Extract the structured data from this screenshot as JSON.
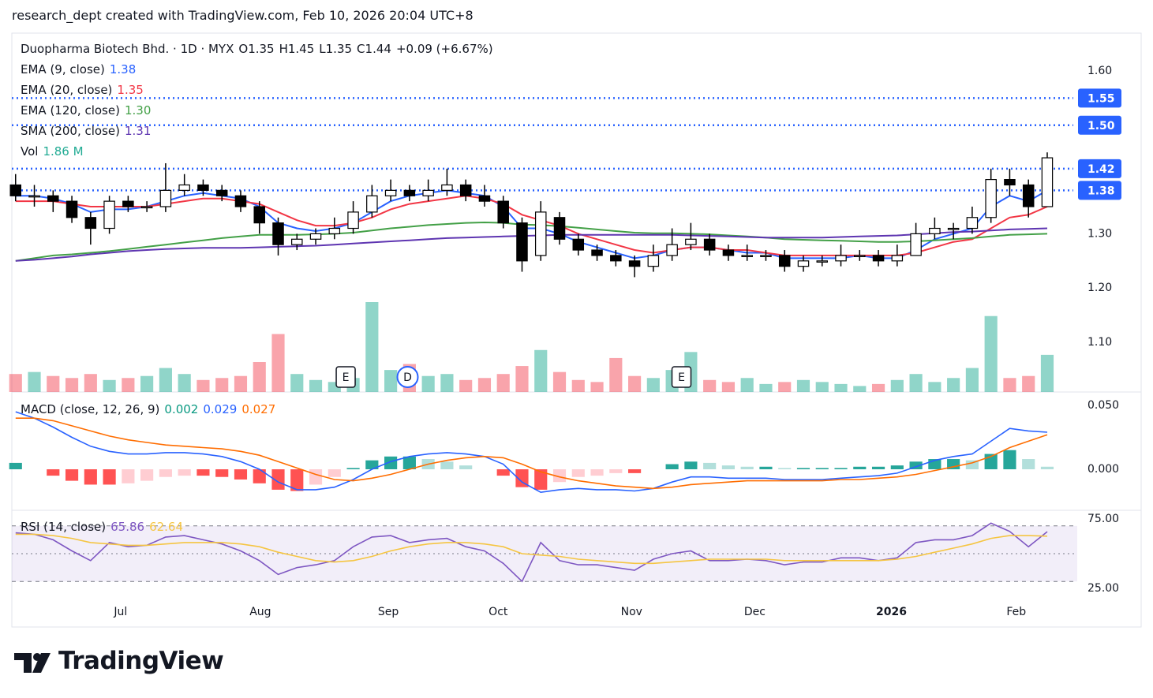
{
  "header": {
    "text": "research_dept created with TradingView.com, Feb 10, 2026 20:04 UTC+8"
  },
  "footer": {
    "brand": "TradingView"
  },
  "chart_data": {
    "type": "candlestick",
    "symbol": "Duopharma Biotech Bhd. · 1D · MYX",
    "ohlc_letters": [
      "O",
      "H",
      "L",
      "C"
    ],
    "change": {
      "value": 0.09,
      "label": "+0.09 (+6.67%)"
    },
    "x": [
      0,
      1,
      2,
      3,
      4,
      5,
      6,
      7,
      8,
      9,
      10,
      11,
      12,
      13,
      14,
      15,
      16,
      17,
      18,
      19,
      20,
      21,
      22,
      23,
      24,
      25,
      26,
      27,
      28,
      29,
      30,
      31,
      32,
      33,
      34,
      35,
      36,
      37,
      38,
      39,
      40,
      41,
      42,
      43,
      44,
      45,
      46,
      47,
      48,
      49,
      50,
      51,
      52,
      53,
      54,
      55
    ],
    "open": [
      1.39,
      1.37,
      1.37,
      1.36,
      1.33,
      1.31,
      1.36,
      1.35,
      1.35,
      1.38,
      1.39,
      1.38,
      1.37,
      1.35,
      1.32,
      1.28,
      1.29,
      1.3,
      1.31,
      1.34,
      1.37,
      1.38,
      1.37,
      1.38,
      1.39,
      1.37,
      1.36,
      1.32,
      1.26,
      1.33,
      1.29,
      1.27,
      1.26,
      1.25,
      1.24,
      1.26,
      1.28,
      1.29,
      1.27,
      1.26,
      1.26,
      1.26,
      1.24,
      1.25,
      1.25,
      1.26,
      1.26,
      1.25,
      1.26,
      1.3,
      1.31,
      1.31,
      1.33,
      1.4,
      1.39,
      1.35
    ],
    "high": [
      1.41,
      1.39,
      1.38,
      1.37,
      1.34,
      1.37,
      1.37,
      1.36,
      1.43,
      1.41,
      1.4,
      1.39,
      1.38,
      1.36,
      1.33,
      1.3,
      1.31,
      1.33,
      1.36,
      1.39,
      1.4,
      1.39,
      1.4,
      1.42,
      1.4,
      1.39,
      1.37,
      1.33,
      1.36,
      1.34,
      1.3,
      1.28,
      1.27,
      1.26,
      1.28,
      1.31,
      1.32,
      1.3,
      1.28,
      1.28,
      1.27,
      1.27,
      1.26,
      1.26,
      1.28,
      1.27,
      1.27,
      1.28,
      1.32,
      1.33,
      1.32,
      1.35,
      1.42,
      1.42,
      1.4,
      1.45
    ],
    "low": [
      1.36,
      1.35,
      1.34,
      1.32,
      1.28,
      1.3,
      1.34,
      1.34,
      1.34,
      1.37,
      1.37,
      1.36,
      1.34,
      1.3,
      1.26,
      1.27,
      1.28,
      1.29,
      1.3,
      1.33,
      1.36,
      1.36,
      1.36,
      1.37,
      1.36,
      1.35,
      1.31,
      1.23,
      1.25,
      1.28,
      1.26,
      1.25,
      1.24,
      1.22,
      1.23,
      1.25,
      1.27,
      1.26,
      1.25,
      1.25,
      1.25,
      1.23,
      1.23,
      1.24,
      1.24,
      1.25,
      1.24,
      1.24,
      1.26,
      1.29,
      1.29,
      1.3,
      1.32,
      1.37,
      1.33,
      1.35
    ],
    "close": [
      1.37,
      1.37,
      1.36,
      1.33,
      1.31,
      1.36,
      1.35,
      1.35,
      1.38,
      1.39,
      1.38,
      1.37,
      1.35,
      1.32,
      1.28,
      1.29,
      1.3,
      1.31,
      1.34,
      1.37,
      1.38,
      1.37,
      1.38,
      1.39,
      1.37,
      1.36,
      1.32,
      1.25,
      1.34,
      1.29,
      1.27,
      1.26,
      1.25,
      1.24,
      1.26,
      1.28,
      1.29,
      1.27,
      1.26,
      1.26,
      1.26,
      1.24,
      1.25,
      1.25,
      1.26,
      1.26,
      1.25,
      1.26,
      1.3,
      1.31,
      1.31,
      1.33,
      1.4,
      1.39,
      1.35,
      1.44
    ],
    "xlim": [
      -0.2,
      56.6
    ],
    "xticks": [
      {
        "value": 5.6,
        "label": "Jul"
      },
      {
        "value": 13.05,
        "label": "Aug"
      },
      {
        "value": 19.87,
        "label": "Sep"
      },
      {
        "value": 25.73,
        "label": "Oct"
      },
      {
        "value": 32.84,
        "label": "Nov"
      },
      {
        "value": 39.41,
        "label": "Dec"
      },
      {
        "value": 46.69,
        "label": "2026"
      },
      {
        "value": 53.35,
        "label": "Feb"
      }
    ],
    "ylim": [
      1.0084,
      1.6698
    ],
    "yticks": [
      {
        "value": 1.1,
        "label": "1.10"
      },
      {
        "value": 1.2,
        "label": "1.20"
      },
      {
        "value": 1.3,
        "label": "1.30"
      },
      {
        "value": 1.6,
        "label": "1.60"
      }
    ],
    "up_color": "#ffffff",
    "down_color": "#000000",
    "price_lines": {
      "color": "#2962ff",
      "levels": [
        {
          "value": 1.55,
          "label": "1.55"
        },
        {
          "value": 1.5,
          "label": "1.50"
        },
        {
          "value": 1.42,
          "label": "1.42"
        },
        {
          "value": 1.38,
          "label": "1.38"
        }
      ]
    },
    "overlays": [
      {
        "name": "EMA (9, close)",
        "color": "#2962ff",
        "values": [
          1.37,
          1.37,
          1.365,
          1.355,
          1.34,
          1.345,
          1.345,
          1.35,
          1.36,
          1.37,
          1.375,
          1.37,
          1.365,
          1.35,
          1.32,
          1.31,
          1.305,
          1.31,
          1.32,
          1.34,
          1.36,
          1.37,
          1.375,
          1.38,
          1.375,
          1.37,
          1.35,
          1.31,
          1.31,
          1.3,
          1.285,
          1.275,
          1.265,
          1.255,
          1.26,
          1.27,
          1.275,
          1.275,
          1.27,
          1.265,
          1.265,
          1.255,
          1.255,
          1.255,
          1.255,
          1.26,
          1.255,
          1.255,
          1.27,
          1.29,
          1.3,
          1.31,
          1.35,
          1.37,
          1.36,
          1.38
        ]
      },
      {
        "name": "EMA (20, close)",
        "color": "#f23645",
        "values": [
          1.36,
          1.36,
          1.36,
          1.355,
          1.35,
          1.35,
          1.35,
          1.35,
          1.355,
          1.36,
          1.365,
          1.365,
          1.36,
          1.355,
          1.34,
          1.325,
          1.315,
          1.315,
          1.32,
          1.33,
          1.345,
          1.355,
          1.36,
          1.365,
          1.37,
          1.365,
          1.355,
          1.335,
          1.325,
          1.315,
          1.3,
          1.29,
          1.28,
          1.27,
          1.265,
          1.27,
          1.275,
          1.275,
          1.27,
          1.27,
          1.265,
          1.26,
          1.26,
          1.26,
          1.26,
          1.26,
          1.26,
          1.26,
          1.265,
          1.275,
          1.285,
          1.29,
          1.31,
          1.33,
          1.335,
          1.35
        ]
      },
      {
        "name": "EMA (120, close)",
        "color": "#43a047",
        "last_label": "1.30",
        "values": [
          1.25,
          1.255,
          1.26,
          1.262,
          1.265,
          1.268,
          1.272,
          1.276,
          1.28,
          1.284,
          1.288,
          1.292,
          1.295,
          1.298,
          1.298,
          1.298,
          1.299,
          1.3,
          1.302,
          1.306,
          1.31,
          1.313,
          1.316,
          1.318,
          1.32,
          1.321,
          1.32,
          1.317,
          1.316,
          1.314,
          1.311,
          1.308,
          1.305,
          1.302,
          1.301,
          1.301,
          1.3,
          1.299,
          1.297,
          1.295,
          1.293,
          1.29,
          1.289,
          1.288,
          1.287,
          1.286,
          1.285,
          1.285,
          1.286,
          1.288,
          1.29,
          1.292,
          1.295,
          1.298,
          1.299,
          1.3
        ]
      },
      {
        "name": "SMA (200, close)",
        "color": "#5e35b1",
        "values": [
          1.25,
          1.252,
          1.255,
          1.258,
          1.262,
          1.265,
          1.268,
          1.27,
          1.272,
          1.273,
          1.274,
          1.274,
          1.274,
          1.275,
          1.276,
          1.277,
          1.278,
          1.28,
          1.282,
          1.284,
          1.286,
          1.288,
          1.29,
          1.292,
          1.293,
          1.294,
          1.295,
          1.296,
          1.297,
          1.298,
          1.298,
          1.298,
          1.298,
          1.298,
          1.298,
          1.298,
          1.297,
          1.296,
          1.295,
          1.294,
          1.293,
          1.293,
          1.293,
          1.293,
          1.294,
          1.295,
          1.296,
          1.297,
          1.299,
          1.301,
          1.303,
          1.304,
          1.306,
          1.308,
          1.309,
          1.31
        ]
      }
    ],
    "volume": {
      "name": "Vol",
      "color": "#22ab94",
      "up_color": "rgba(34,171,148,0.5)",
      "down_color": "rgba(242,54,69,0.45)",
      "last_label": "1.86 M",
      "values": [
        900000,
        1000000,
        800000,
        700000,
        900000,
        600000,
        700000,
        800000,
        1200000,
        900000,
        600000,
        700000,
        800000,
        1500000,
        2900000,
        900000,
        600000,
        500000,
        700000,
        4500000,
        1100000,
        1400000,
        800000,
        900000,
        600000,
        700000,
        900000,
        1300000,
        2100000,
        1000000,
        600000,
        500000,
        1700000,
        800000,
        700000,
        1100000,
        2000000,
        600000,
        500000,
        700000,
        400000,
        500000,
        600000,
        500000,
        400000,
        300000,
        400000,
        600000,
        900000,
        500000,
        700000,
        1200000,
        3800000,
        700000,
        800000,
        1860000
      ]
    },
    "events": [
      {
        "x": 17.6,
        "label": "E"
      },
      {
        "x": 20.9,
        "label": "D"
      },
      {
        "x": 35.5,
        "label": "E"
      }
    ],
    "macd": {
      "name": "MACD (close, 12, 26, 9)",
      "ylim": [
        -0.0321,
        0.0605
      ],
      "yticks": [
        {
          "value": 0.05,
          "label": "0.050"
        },
        {
          "value": 0,
          "label": "0.000"
        }
      ],
      "histogram": {
        "color": "#089981",
        "values": [
          0.005,
          0.0,
          -0.005,
          -0.009,
          -0.012,
          -0.012,
          -0.011,
          -0.009,
          -0.006,
          -0.005,
          -0.005,
          -0.006,
          -0.008,
          -0.011,
          -0.016,
          -0.017,
          -0.012,
          -0.006,
          0.001,
          0.007,
          0.01,
          0.01,
          0.008,
          0.006,
          0.003,
          0.0,
          -0.005,
          -0.014,
          -0.016,
          -0.01,
          -0.006,
          -0.005,
          -0.003,
          -0.003,
          0.0,
          0.004,
          0.006,
          0.005,
          0.003,
          0.002,
          0.002,
          0.001,
          0.001,
          0.001,
          0.001,
          0.002,
          0.002,
          0.003,
          0.006,
          0.008,
          0.008,
          0.007,
          0.012,
          0.015,
          0.008,
          0.002
        ]
      },
      "series": [
        {
          "color": "#2962ff",
          "values": [
            0.045,
            0.04,
            0.033,
            0.025,
            0.018,
            0.014,
            0.012,
            0.012,
            0.013,
            0.013,
            0.012,
            0.01,
            0.006,
            0.0,
            -0.01,
            -0.016,
            -0.016,
            -0.014,
            -0.008,
            0.0,
            0.006,
            0.01,
            0.012,
            0.013,
            0.012,
            0.01,
            0.004,
            -0.01,
            -0.018,
            -0.016,
            -0.015,
            -0.016,
            -0.016,
            -0.017,
            -0.015,
            -0.01,
            -0.006,
            -0.006,
            -0.007,
            -0.007,
            -0.007,
            -0.008,
            -0.008,
            -0.008,
            -0.007,
            -0.006,
            -0.005,
            -0.003,
            0.002,
            0.007,
            0.01,
            0.012,
            0.022,
            0.032,
            0.03,
            0.029
          ]
        },
        {
          "color": "#ff6d00",
          "values": [
            0.04,
            0.04,
            0.038,
            0.034,
            0.03,
            0.026,
            0.023,
            0.021,
            0.019,
            0.018,
            0.017,
            0.016,
            0.014,
            0.011,
            0.006,
            0.001,
            -0.004,
            -0.008,
            -0.009,
            -0.007,
            -0.004,
            0.0,
            0.004,
            0.007,
            0.009,
            0.01,
            0.009,
            0.004,
            -0.002,
            -0.006,
            -0.009,
            -0.011,
            -0.013,
            -0.014,
            -0.015,
            -0.014,
            -0.012,
            -0.011,
            -0.01,
            -0.009,
            -0.009,
            -0.009,
            -0.009,
            -0.009,
            -0.008,
            -0.008,
            -0.007,
            -0.006,
            -0.004,
            -0.001,
            0.002,
            0.005,
            0.01,
            0.017,
            0.022,
            0.027
          ]
        }
      ]
    },
    "rsi": {
      "name": "RSI (14, close)",
      "ylim": [
        17.05,
        81.25
      ],
      "yticks": [
        {
          "value": 75,
          "label": "75.00"
        },
        {
          "value": 25,
          "label": "25.00"
        }
      ],
      "bands": [
        70,
        50,
        30
      ],
      "series": [
        {
          "color": "#7e57c2",
          "values": [
            65,
            64,
            60,
            52,
            45,
            58,
            55,
            56,
            62,
            63,
            60,
            57,
            52,
            45,
            35,
            40,
            42,
            45,
            55,
            62,
            63,
            58,
            60,
            61,
            55,
            52,
            43,
            30,
            58,
            45,
            42,
            42,
            40,
            38,
            46,
            50,
            52,
            45,
            45,
            46,
            45,
            42,
            44,
            44,
            47,
            47,
            45,
            47,
            58,
            60,
            60,
            63,
            72,
            66,
            55,
            65.86
          ]
        },
        {
          "color": "#f5c542",
          "values": [
            64,
            64,
            63,
            61,
            58,
            57,
            56,
            56,
            57,
            58,
            58,
            58,
            57,
            55,
            51,
            48,
            45,
            44,
            45,
            48,
            52,
            55,
            57,
            58,
            58,
            57,
            55,
            50,
            49,
            48,
            46,
            45,
            44,
            43,
            43,
            44,
            45,
            46,
            46,
            46,
            46,
            45,
            45,
            45,
            45,
            45,
            45,
            46,
            48,
            51,
            54,
            57,
            61,
            63,
            63,
            62.64
          ]
        }
      ]
    }
  }
}
